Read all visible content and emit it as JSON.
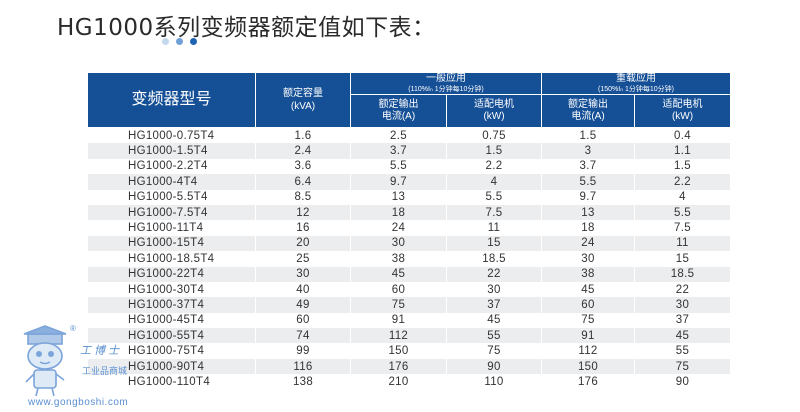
{
  "title": "HG1000系列变频器额定值如下表：",
  "colors": {
    "header_bg": "#154f96",
    "row_alt": "#ecedef",
    "dot1": "#c4d8ee",
    "dot2": "#6fa0d6",
    "dot3": "#1f63b4"
  },
  "headers": {
    "model": "变频器型号",
    "capacity": "额定容量",
    "capacity_unit": "(kVA)",
    "normal_group": "一般应用",
    "normal_note": "(110%Iₙ 1分钟每10分钟)",
    "heavy_group": "重载应用",
    "heavy_note": "(150%Iₙ 1分钟每10分钟)",
    "out_current": "额定输出",
    "out_current_unit": "电流(A)",
    "motor": "适配电机",
    "motor_unit": "(kW)"
  },
  "rows": [
    [
      "HG1000-0.75T4",
      "1.6",
      "2.5",
      "0.75",
      "1.5",
      "0.4"
    ],
    [
      "HG1000-1.5T4",
      "2.4",
      "3.7",
      "1.5",
      "3",
      "1.1"
    ],
    [
      "HG1000-2.2T4",
      "3.6",
      "5.5",
      "2.2",
      "3.7",
      "1.5"
    ],
    [
      "HG1000-4T4",
      "6.4",
      "9.7",
      "4",
      "5.5",
      "2.2"
    ],
    [
      "HG1000-5.5T4",
      "8.5",
      "13",
      "5.5",
      "9.7",
      "4"
    ],
    [
      "HG1000-7.5T4",
      "12",
      "18",
      "7.5",
      "13",
      "5.5"
    ],
    [
      "HG1000-11T4",
      "16",
      "24",
      "11",
      "18",
      "7.5"
    ],
    [
      "HG1000-15T4",
      "20",
      "30",
      "15",
      "24",
      "11"
    ],
    [
      "HG1000-18.5T4",
      "25",
      "38",
      "18.5",
      "30",
      "15"
    ],
    [
      "HG1000-22T4",
      "30",
      "45",
      "22",
      "38",
      "18.5"
    ],
    [
      "HG1000-30T4",
      "40",
      "60",
      "30",
      "45",
      "22"
    ],
    [
      "HG1000-37T4",
      "49",
      "75",
      "37",
      "60",
      "30"
    ],
    [
      "HG1000-45T4",
      "60",
      "91",
      "45",
      "75",
      "37"
    ],
    [
      "HG1000-55T4",
      "74",
      "112",
      "55",
      "91",
      "45"
    ],
    [
      "HG1000-75T4",
      "99",
      "150",
      "75",
      "112",
      "55"
    ],
    [
      "HG1000-90T4",
      "116",
      "176",
      "90",
      "150",
      "75"
    ],
    [
      "HG1000-110T4",
      "138",
      "210",
      "110",
      "176",
      "90"
    ]
  ],
  "watermark": {
    "brand": "工博士",
    "subtitle": "工业品商城",
    "url": "www.gongboshi.com",
    "reg": "®"
  }
}
